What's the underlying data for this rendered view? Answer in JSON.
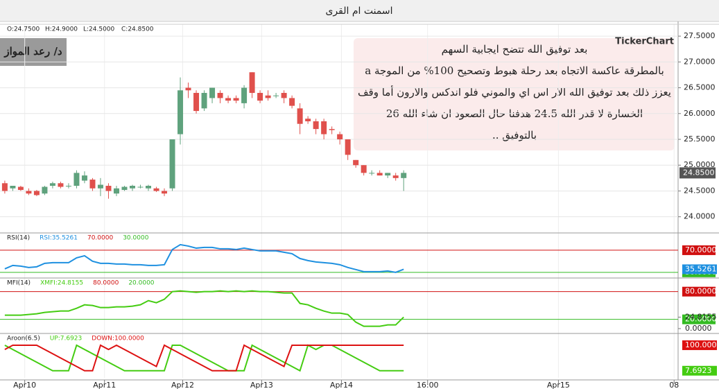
{
  "window_title": "اسمنت ام القرى",
  "author": "د/ رعد المواز",
  "watermark": "TickerChart",
  "note_lines": [
    "بعد توفيق الله تتضح ايجابية السهم",
    "بالمطرقة عاكسة الاتجاه بعد رحلة هبوط وتصحيح 100% من الموجة a",
    "يعزز ذلك بعد توفيق الله الار اس اي والموني فلو اندكس والارون أما وقف",
    "الخسارة لا قدر الله 24.5 هدفنا حال الصعود ان شاء الله 26",
    "بالتوفيق .."
  ],
  "chart_data": [
    {
      "type": "candlestick",
      "ohlc_labels": [
        "O:24.7500",
        "H:24.9000",
        "L:24.5000",
        "C:24.8500"
      ],
      "up_color": "#5fa27d",
      "down_color": "#e0504c",
      "open": [
        24.65,
        24.55,
        24.58,
        24.5,
        24.5,
        24.45,
        24.6,
        24.65,
        24.6,
        24.6,
        24.7,
        24.72,
        24.55,
        24.6,
        24.45,
        24.52,
        24.55,
        24.58,
        24.55,
        24.55,
        24.5,
        24.55,
        25.6,
        26.5,
        26.4,
        26.1,
        26.3,
        26.4,
        26.3,
        26.3,
        26.2,
        26.8,
        26.4,
        26.35,
        26.35,
        26.4,
        26.3,
        26.1,
        25.9,
        25.85,
        25.85,
        25.7,
        25.6,
        25.5,
        25.1,
        25.0,
        24.85,
        24.85,
        24.8,
        24.8,
        24.75
      ],
      "high": [
        24.7,
        24.6,
        24.6,
        24.55,
        24.52,
        24.6,
        24.68,
        24.68,
        24.65,
        24.9,
        24.88,
        24.75,
        24.75,
        24.65,
        24.6,
        24.6,
        24.62,
        24.62,
        24.62,
        24.58,
        24.55,
        25.5,
        26.7,
        26.6,
        26.45,
        26.45,
        26.5,
        26.45,
        26.35,
        26.35,
        26.55,
        26.8,
        26.45,
        26.45,
        26.4,
        26.45,
        26.35,
        26.2,
        25.95,
        25.9,
        25.9,
        25.75,
        25.65,
        25.5,
        25.1,
        25.0,
        24.9,
        24.9,
        24.85,
        24.85,
        24.9
      ],
      "low": [
        24.45,
        24.5,
        24.5,
        24.42,
        24.4,
        24.42,
        24.55,
        24.55,
        24.55,
        24.55,
        24.65,
        24.5,
        24.4,
        24.35,
        24.4,
        24.5,
        24.5,
        24.55,
        24.5,
        24.48,
        24.4,
        24.5,
        25.4,
        26.3,
        26.0,
        26.05,
        26.2,
        26.2,
        26.2,
        26.2,
        26.1,
        26.3,
        26.2,
        26.25,
        26.3,
        26.2,
        26.1,
        25.6,
        25.8,
        25.6,
        25.5,
        25.6,
        25.4,
        25.1,
        24.95,
        24.8,
        24.8,
        24.8,
        24.75,
        24.7,
        24.5
      ],
      "close": [
        24.5,
        24.6,
        24.52,
        24.45,
        24.42,
        24.58,
        24.65,
        24.58,
        24.6,
        24.85,
        24.8,
        24.55,
        24.62,
        24.5,
        24.55,
        24.58,
        24.6,
        24.58,
        24.6,
        24.5,
        24.45,
        25.5,
        26.45,
        26.45,
        26.05,
        26.4,
        26.5,
        26.3,
        26.25,
        26.25,
        26.5,
        26.4,
        26.25,
        26.3,
        26.35,
        26.3,
        26.15,
        25.8,
        25.85,
        25.7,
        25.6,
        25.68,
        25.5,
        25.2,
        25.0,
        24.85,
        24.85,
        24.8,
        24.85,
        24.75,
        24.85
      ],
      "ylim": [
        23.7,
        27.73
      ],
      "yticks": [
        {
          "value": 27.5,
          "label": "27.5000"
        },
        {
          "value": 27,
          "label": "27.0000"
        },
        {
          "value": 26.5,
          "label": "26.5000"
        },
        {
          "value": 26,
          "label": "26.0000"
        },
        {
          "value": 25.5,
          "label": "25.5000"
        },
        {
          "value": 25,
          "label": "25.0000"
        },
        {
          "value": 24.5,
          "label": "24.5000"
        },
        {
          "value": 24,
          "label": "24.0000"
        }
      ],
      "last_label": {
        "value": 24.85,
        "label": "24.8500"
      },
      "xlim": [
        -0.6,
        84.4
      ],
      "xticks": [
        {
          "value": 2.5,
          "label": "Apr10"
        },
        {
          "value": 12.5,
          "label": "Apr11"
        },
        {
          "value": 22.3,
          "label": "Apr12"
        },
        {
          "value": 32.2,
          "label": "Apr13"
        },
        {
          "value": 42.2,
          "label": "Apr14"
        },
        {
          "value": 53,
          "label": "16:00"
        },
        {
          "value": 69.4,
          "label": "Apr15"
        },
        {
          "value": 83.9,
          "label": "08"
        }
      ],
      "grid": true
    },
    {
      "type": "line",
      "title": "RSI(14)",
      "series": [
        {
          "name": "RSI:35.5261",
          "color": "#1e90e0",
          "values": [
            36.25,
            42.5,
            41.25,
            38.75,
            40,
            46.25,
            47.5,
            47.5,
            47.5,
            56.25,
            60,
            50,
            46.25,
            46.25,
            45,
            45,
            43.75,
            43.75,
            42.5,
            42.5,
            43.75,
            71.25,
            80,
            77.5,
            73.75,
            75,
            75,
            72.5,
            72.5,
            71.25,
            73.75,
            71.25,
            68.75,
            68.75,
            68.75,
            66.25,
            63.75,
            55,
            51.25,
            48.75,
            47.5,
            46.25,
            43.75,
            38.75,
            35,
            31.25,
            31.25,
            31.25,
            32.5,
            30,
            35.5261
          ]
        }
      ],
      "levels": [
        {
          "value": 70,
          "label": "70.0000"
        },
        {
          "value": 30,
          "label": "30.0000"
        }
      ],
      "level_colors": [
        "#d01010",
        "#33bb22"
      ],
      "yticks": [
        {
          "value": 35.5261,
          "label": "35.5261"
        }
      ],
      "tick_box_colors": [
        "#1e90e0"
      ],
      "ylim": [
        21,
        100
      ]
    },
    {
      "type": "line",
      "title": "MFI(14)",
      "series": [
        {
          "name": "XMFI:24.8155",
          "color": "#44cc11",
          "values": [
            29,
            29,
            29,
            30.5,
            32,
            35,
            36.5,
            38,
            38,
            44,
            51.5,
            50,
            45.5,
            45.5,
            47,
            47,
            48.5,
            51.5,
            60.5,
            56,
            63.5,
            80,
            81.5,
            80,
            78.5,
            80,
            80,
            81.5,
            80,
            81.5,
            80,
            81.5,
            80,
            80,
            78.5,
            77,
            77,
            54.5,
            51.5,
            44,
            38,
            33.5,
            33.5,
            30.5,
            14,
            5,
            5,
            5,
            8,
            8,
            24.8155
          ]
        }
      ],
      "levels": [
        {
          "value": 80,
          "label": "80.0000"
        },
        {
          "value": 20,
          "label": "20.0000"
        }
      ],
      "level_colors": [
        "#d01010",
        "#33bb22"
      ],
      "yticks": [
        {
          "value": 24.8155,
          "label": "24.8155"
        },
        {
          "value": 0,
          "label": "0.0000"
        }
      ],
      "tick_box_colors": [
        null,
        null
      ],
      "ylim": [
        -9,
        108
      ]
    },
    {
      "type": "line",
      "title": "Aroon(6.5)",
      "series": [
        {
          "name": "UP:7.6923",
          "color": "#44cc11",
          "values": [
            100,
            84.6,
            69.2,
            53.8,
            38.5,
            23.1,
            7.7,
            7.7,
            7.7,
            100,
            84.6,
            69.2,
            53.8,
            38.5,
            23.1,
            7.7,
            7.7,
            7.7,
            7.7,
            7.7,
            7.7,
            100,
            100,
            84.6,
            69.2,
            53.8,
            38.5,
            23.1,
            7.7,
            7.7,
            7.7,
            100,
            84.6,
            69.2,
            53.8,
            38.5,
            23.1,
            7.7,
            100,
            84.6,
            100,
            100,
            84.6,
            69.2,
            53.8,
            38.5,
            23.1,
            7.7,
            7.7,
            7.7,
            7.6923
          ]
        },
        {
          "name": "DOWN:100.0000",
          "color": "#dd1111",
          "values": [
            84.6,
            100,
            100,
            100,
            100,
            84.6,
            69.2,
            53.8,
            38.5,
            23.1,
            7.7,
            7.7,
            100,
            84.6,
            100,
            84.6,
            69.2,
            53.8,
            38.5,
            23.1,
            100,
            84.6,
            69.2,
            53.8,
            38.5,
            23.1,
            7.7,
            7.7,
            7.7,
            7.7,
            100,
            84.6,
            69.2,
            53.8,
            38.5,
            23.1,
            100,
            100,
            100,
            100,
            100,
            100,
            100,
            100,
            100,
            100,
            100,
            100,
            100,
            100,
            100
          ]
        }
      ],
      "levels": [],
      "level_colors": [],
      "yticks": [
        {
          "value": 100,
          "label": "100.0000"
        },
        {
          "value": 7.6923,
          "label": "7.6923"
        }
      ],
      "tick_box_colors": [
        "#dd1111",
        "#44cc11"
      ],
      "ylim": [
        -18,
        140
      ]
    }
  ]
}
